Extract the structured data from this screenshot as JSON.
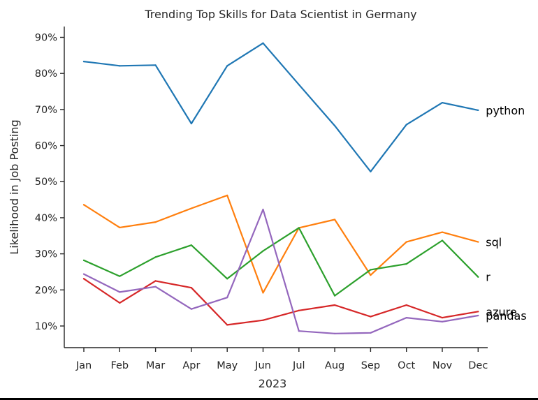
{
  "chart_data": {
    "type": "line",
    "title": "Trending Top Skills for Data Scientist in Germany",
    "xlabel": "2023",
    "ylabel": "Likelihood in Job Posting",
    "categories": [
      "Jan",
      "Feb",
      "Mar",
      "Apr",
      "May",
      "Jun",
      "Jul",
      "Aug",
      "Sep",
      "Oct",
      "Nov",
      "Dec"
    ],
    "y_ticks": [
      10,
      20,
      30,
      40,
      50,
      60,
      70,
      80,
      90
    ],
    "y_tick_labels": [
      "10%",
      "20%",
      "30%",
      "40%",
      "50%",
      "60%",
      "70%",
      "80%",
      "90%"
    ],
    "ylim": [
      4,
      93
    ],
    "grid": false,
    "series": [
      {
        "name": "python",
        "color": "#1f77b4",
        "values": [
          83.3,
          82.1,
          82.3,
          66.1,
          82.1,
          88.4,
          76.9,
          65.5,
          52.8,
          65.8,
          71.9,
          69.8
        ]
      },
      {
        "name": "sql",
        "color": "#ff7f0e",
        "values": [
          43.6,
          37.3,
          38.8,
          42.6,
          46.2,
          19.2,
          37.2,
          39.5,
          24.1,
          33.3,
          36.0,
          33.3
        ]
      },
      {
        "name": "r",
        "color": "#2ca02c",
        "values": [
          28.2,
          23.8,
          29.1,
          32.4,
          23.1,
          30.8,
          37.2,
          18.4,
          25.6,
          27.2,
          33.7,
          23.6
        ]
      },
      {
        "name": "azure",
        "color": "#d62728",
        "values": [
          23.1,
          16.4,
          22.5,
          20.6,
          10.3,
          11.6,
          14.3,
          15.8,
          12.6,
          15.8,
          12.3,
          14.0
        ]
      },
      {
        "name": "pandas",
        "color": "#9467bd",
        "values": [
          24.4,
          19.4,
          20.9,
          14.7,
          17.9,
          42.3,
          8.6,
          7.9,
          8.1,
          12.3,
          11.2,
          12.9
        ]
      }
    ]
  }
}
